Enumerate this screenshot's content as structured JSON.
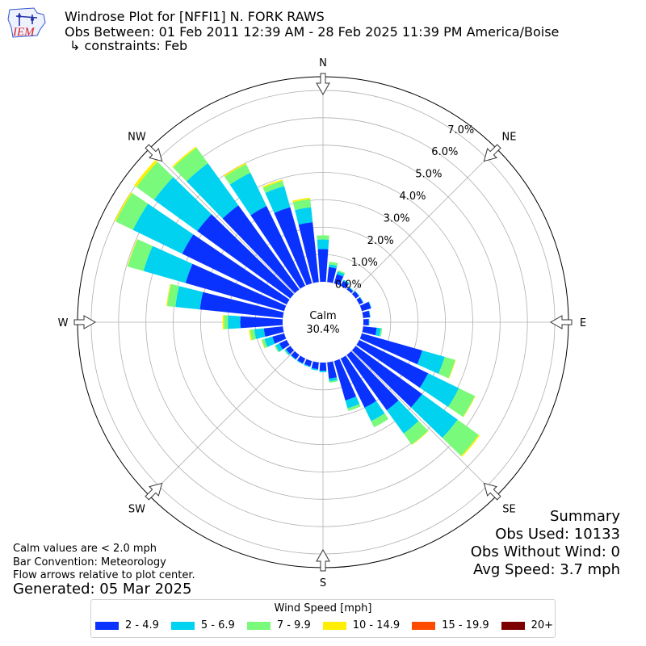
{
  "header": {
    "title_line1": "Windrose Plot for [NFFI1] N. FORK RAWS",
    "title_line2": "Obs Between: 01 Feb 2011 12:39 AM - 28 Feb 2025 11:39 PM America/Boise",
    "title_line3": "↳ constraints: Feb",
    "logo_text": "IEM"
  },
  "notes": {
    "calm": "Calm values are < 2.0 mph",
    "convention": "Bar Convention: Meteorology",
    "flow": "Flow arrows relative to plot center.",
    "generated": "Generated: 05 Mar 2025"
  },
  "summary": {
    "title": "Summary",
    "obs_used": "Obs Used: 10133",
    "obs_without_wind": "Obs Without Wind: 0",
    "avg_speed": "Avg Speed: 3.7 mph"
  },
  "legend": {
    "title": "Wind Speed [mph]",
    "items": [
      {
        "label": "2 - 4.9",
        "color": "#0a32ff"
      },
      {
        "label": "5 - 6.9",
        "color": "#00d2f0"
      },
      {
        "label": "7 - 9.9",
        "color": "#7afa7a"
      },
      {
        "label": "10 - 14.9",
        "color": "#ffee00"
      },
      {
        "label": "15 - 19.9",
        "color": "#ff4b00"
      },
      {
        "label": "20+",
        "color": "#7c0000"
      }
    ]
  },
  "chart_data": {
    "type": "windrose",
    "calm_label": "Calm",
    "calm_value": "30.4%",
    "radial_ticks": [
      0,
      1,
      2,
      3,
      4,
      5,
      6,
      7
    ],
    "radial_tick_labels": [
      "0.0%",
      "1.0%",
      "2.0%",
      "3.0%",
      "4.0%",
      "5.0%",
      "6.0%",
      "7.0%"
    ],
    "rmax": 7.5,
    "compass_labels": [
      {
        "label": "N",
        "deg": 0
      },
      {
        "label": "NE",
        "deg": 45
      },
      {
        "label": "E",
        "deg": 90
      },
      {
        "label": "SE",
        "deg": 135
      },
      {
        "label": "S",
        "deg": 180
      },
      {
        "label": "SW",
        "deg": 225
      },
      {
        "label": "W",
        "deg": 270
      },
      {
        "label": "NW",
        "deg": 315
      }
    ],
    "bin_width_deg": 10,
    "bins": [
      {
        "dir": 0,
        "values": [
          1.2,
          0.35,
          0.15,
          0,
          0,
          0
        ]
      },
      {
        "dir": 10,
        "values": [
          0.55,
          0.1,
          0.1,
          0,
          0,
          0
        ]
      },
      {
        "dir": 20,
        "values": [
          0.35,
          0.1,
          0.05,
          0,
          0,
          0
        ]
      },
      {
        "dir": 30,
        "values": [
          0.2,
          0.05,
          0,
          0,
          0,
          0
        ]
      },
      {
        "dir": 40,
        "values": [
          0.1,
          0.03,
          0,
          0,
          0,
          0
        ]
      },
      {
        "dir": 50,
        "values": [
          0.15,
          0.02,
          0,
          0,
          0,
          0
        ]
      },
      {
        "dir": 60,
        "values": [
          0.15,
          0.02,
          0,
          0,
          0,
          0
        ]
      },
      {
        "dir": 70,
        "values": [
          0.35,
          0.02,
          0,
          0,
          0,
          0
        ]
      },
      {
        "dir": 80,
        "values": [
          0.25,
          0.02,
          0,
          0,
          0,
          0
        ]
      },
      {
        "dir": 90,
        "values": [
          0.2,
          0.02,
          0,
          0,
          0,
          0
        ]
      },
      {
        "dir": 100,
        "values": [
          0.5,
          0.15,
          0.05,
          0,
          0,
          0
        ]
      },
      {
        "dir": 110,
        "values": [
          2.3,
          0.85,
          0.4,
          0.02,
          0,
          0
        ]
      },
      {
        "dir": 120,
        "values": [
          2.8,
          1.25,
          0.65,
          0.02,
          0,
          0
        ]
      },
      {
        "dir": 130,
        "values": [
          3.0,
          1.6,
          0.95,
          0.05,
          0,
          0
        ]
      },
      {
        "dir": 140,
        "values": [
          2.5,
          1.05,
          0.5,
          0.02,
          0,
          0
        ]
      },
      {
        "dir": 150,
        "values": [
          2.0,
          0.55,
          0.25,
          0,
          0,
          0
        ]
      },
      {
        "dir": 160,
        "values": [
          1.5,
          0.3,
          0.1,
          0,
          0,
          0
        ]
      },
      {
        "dir": 170,
        "values": [
          0.6,
          0.1,
          0.05,
          0,
          0,
          0
        ]
      },
      {
        "dir": 180,
        "values": [
          0.3,
          0.05,
          0,
          0,
          0,
          0
        ]
      },
      {
        "dir": 190,
        "values": [
          0.25,
          0.05,
          0,
          0,
          0,
          0
        ]
      },
      {
        "dir": 200,
        "values": [
          0.2,
          0.04,
          0,
          0,
          0,
          0
        ]
      },
      {
        "dir": 210,
        "values": [
          0.2,
          0.03,
          0,
          0,
          0,
          0
        ]
      },
      {
        "dir": 220,
        "values": [
          0.2,
          0.03,
          0,
          0,
          0,
          0
        ]
      },
      {
        "dir": 230,
        "values": [
          0.2,
          0.05,
          0.03,
          0,
          0,
          0
        ]
      },
      {
        "dir": 240,
        "values": [
          0.3,
          0.15,
          0.05,
          0,
          0,
          0
        ]
      },
      {
        "dir": 250,
        "values": [
          0.45,
          0.3,
          0.1,
          0.02,
          0,
          0
        ]
      },
      {
        "dir": 260,
        "values": [
          0.7,
          0.35,
          0.15,
          0.05,
          0,
          0
        ]
      },
      {
        "dir": 270,
        "values": [
          1.55,
          0.45,
          0.15,
          0.05,
          0,
          0
        ]
      },
      {
        "dir": 280,
        "values": [
          3.05,
          0.9,
          0.3,
          0.03,
          0,
          0
        ]
      },
      {
        "dir": 290,
        "values": [
          3.75,
          1.6,
          0.6,
          0.02,
          0,
          0
        ]
      },
      {
        "dir": 300,
        "values": [
          4.25,
          2.0,
          0.7,
          0.05,
          0,
          0
        ]
      },
      {
        "dir": 310,
        "values": [
          4.2,
          1.95,
          0.8,
          0.1,
          0,
          0
        ]
      },
      {
        "dir": 320,
        "values": [
          3.8,
          1.9,
          0.7,
          0.05,
          0,
          0
        ]
      },
      {
        "dir": 330,
        "values": [
          3.25,
          1.35,
          0.35,
          0.05,
          0,
          0
        ]
      },
      {
        "dir": 340,
        "values": [
          2.9,
          0.8,
          0.2,
          0.05,
          0,
          0
        ]
      },
      {
        "dir": 350,
        "values": [
          2.2,
          0.55,
          0.3,
          0.05,
          0,
          0
        ]
      }
    ]
  }
}
